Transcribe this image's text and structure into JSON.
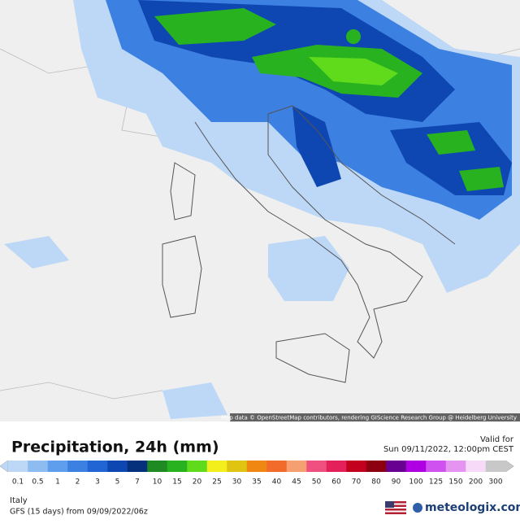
{
  "map": {
    "attribution": "Map data © OpenStreetMap contributors, rendering GIScience Research Group @ Heidelberg University"
  },
  "header": {
    "title": "Precipitation, 24h (mm)",
    "valid_label": "Valid for",
    "valid_time": "Sun 09/11/2022, 12:00pm CEST"
  },
  "legend": {
    "items": [
      {
        "label": "0.1",
        "color": "#bdd7f6"
      },
      {
        "label": "0.5",
        "color": "#8dbcf1"
      },
      {
        "label": "1",
        "color": "#5f9ded"
      },
      {
        "label": "2",
        "color": "#3c80e2"
      },
      {
        "label": "3",
        "color": "#2065d3"
      },
      {
        "label": "5",
        "color": "#0f47b2"
      },
      {
        "label": "7",
        "color": "#07307c"
      },
      {
        "label": "10",
        "color": "#1f8a22"
      },
      {
        "label": "15",
        "color": "#29b21f"
      },
      {
        "label": "20",
        "color": "#5fdb1c"
      },
      {
        "label": "25",
        "color": "#f3ef1c"
      },
      {
        "label": "30",
        "color": "#dfc412"
      },
      {
        "label": "35",
        "color": "#ef8712"
      },
      {
        "label": "40",
        "color": "#f26b2a"
      },
      {
        "label": "45",
        "color": "#f6a071"
      },
      {
        "label": "50",
        "color": "#f0507f"
      },
      {
        "label": "60",
        "color": "#e4205a"
      },
      {
        "label": "70",
        "color": "#c4001f"
      },
      {
        "label": "80",
        "color": "#8c0010"
      },
      {
        "label": "90",
        "color": "#680092"
      },
      {
        "label": "100",
        "color": "#ae00e2"
      },
      {
        "label": "125",
        "color": "#cf52f0"
      },
      {
        "label": "150",
        "color": "#e694f2"
      },
      {
        "label": "200",
        "color": "#f6daf8"
      },
      {
        "label": "300",
        "color": "#c8c8c8"
      }
    ]
  },
  "footer": {
    "region": "Italy",
    "model": "GFS (15 days) from 09/09/2022/06z",
    "logo": "meteologix.com"
  }
}
